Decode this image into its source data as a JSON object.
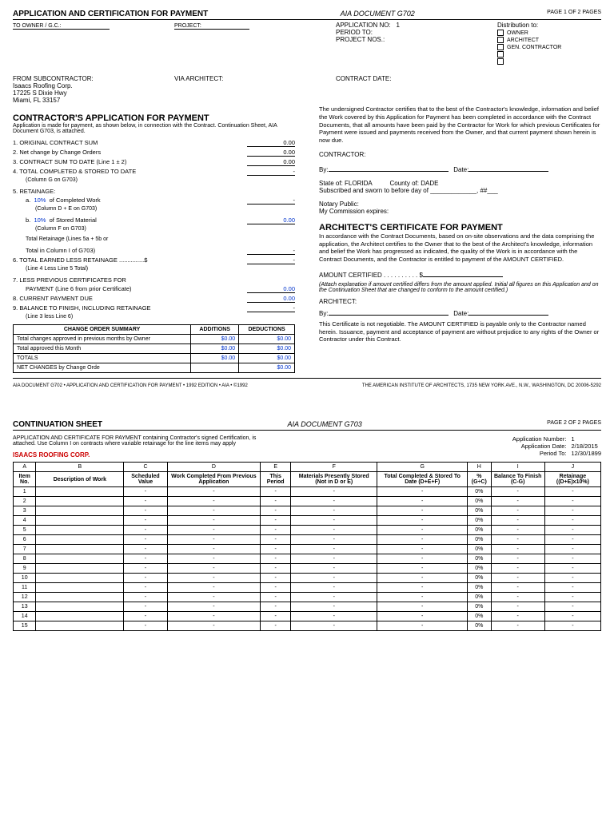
{
  "page1": {
    "title": "APPLICATION AND CERTIFICATION FOR PAYMENT",
    "doc": "AIA DOCUMENT G702",
    "pagenum": "PAGE 1 OF 2 PAGES",
    "toOwner": "TO OWNER / G.C.:",
    "project": "PROJECT:",
    "appNoLabel": "APPLICATION NO:",
    "appNo": "1",
    "periodTo": "PERIOD TO:",
    "projectNos": "PROJECT NOS.:",
    "distribution": "Distribution to:",
    "distItems": [
      "OWNER",
      "ARCHITECT",
      "GEN. CONTRACTOR"
    ],
    "fromSub": "FROM SUBCONTRACTOR:",
    "viaArch": "VIA ARCHITECT:",
    "contractDate": "CONTRACT DATE:",
    "contractor": {
      "name": "Isaacs Roofing Corp.",
      "addr1": "17225 S Dixie Hwy",
      "addr2": "Miami, FL 33157"
    },
    "sectionA": "CONTRACTOR'S APPLICATION FOR PAYMENT",
    "sectionASub": "Application is made for payment, as shown below, in connection with the Contract. Continuation Sheet, AIA Document G703, is attached.",
    "certText": "The undersigned Contractor certifies that to the best of the Contractor's knowledge, information and belief the Work covered by this Application for Payment has been completed in accordance with the Contract Documents, that all amounts have been paid by the Contractor for Work for which previous Certificates for Payment were issued and payments received from the Owner, and that current payment shown herein is now due.",
    "contractorLabel": "CONTRACTOR:",
    "byLabel": "By:",
    "dateLabel": "Date:",
    "stateLabel": "State of:",
    "state": "FLORIDA",
    "countyLabel": "County of:",
    "county": "DADE",
    "sworn": "Subscribed and sworn to before    day of _____________, ##___",
    "notary": "Notary Public:",
    "commission": "My Commission expires:",
    "lines": {
      "l1": "1.  ORIGINAL CONTRACT SUM",
      "l2": "2.  Net change by Change Orders",
      "l3": "3.  CONTRACT SUM TO DATE (Line 1 ± 2)",
      "l4": "4.  TOTAL COMPLETED & STORED TO DATE",
      "l4sub": "(Column G on G703)",
      "l5": "5.  RETAINAGE:",
      "l5a": "a.  10%  of Completed Work",
      "l5asub": "(Column D + E on G703)",
      "l5b": "b.  10%  of Stored Material",
      "l5bsub": "(Column F on G703)",
      "l5tot": "Total Retainage (Lines 5a + 5b or",
      "l5tot2": "Total in Column I of G703)",
      "l6": "6.  TOTAL EARNED LESS RETAINAGE ...............$",
      "l6sub": "(Line 4 Less Line 5 Total)",
      "l7": "7.  LESS PREVIOUS CERTIFICATES FOR",
      "l7b": "PAYMENT (Line 6 from prior Certificate)",
      "l8": "8.  CURRENT PAYMENT DUE",
      "l9": "9.  BALANCE TO FINISH, INCLUDING RETAINAGE",
      "l9sub": "(Line 3 less Line 6)",
      "v1": "0.00",
      "v2": "0.00",
      "v3": "0.00",
      "v4": "-",
      "v5a": "-",
      "v5b": "0.00",
      "v5t": "-",
      "v6": "-",
      "v7": "0.00",
      "v8": "0.00",
      "v9": "-"
    },
    "coHeader": {
      "c1": "CHANGE ORDER SUMMARY",
      "c2": "ADDITIONS",
      "c3": "DEDUCTIONS"
    },
    "coRows": [
      {
        "label": "Total changes approved in previous months by Owner",
        "add": "$0.00",
        "ded": "$0.00"
      },
      {
        "label": "Total approved this Month",
        "add": "$0.00",
        "ded": "$0.00"
      },
      {
        "label": "TOTALS",
        "add": "$0.00",
        "ded": "$0.00"
      },
      {
        "label": "NET CHANGES by Change Orde",
        "add": "",
        "ded": "$0.00"
      }
    ],
    "archSection": "ARCHITECT'S CERTIFICATE FOR PAYMENT",
    "archText": "In accordance with the Contract Documents, based on on-site observations and the data comprising the application, the Architect certifies to the Owner that to the best of the Architect's knowledge, information and belief the Work has progressed as indicated, the quality of the Work is in accordance with the Contract Documents, and the Contractor is entitled to payment of the AMOUNT CERTIFIED.",
    "amountCert": "AMOUNT CERTIFIED . . . . . . . . . . $",
    "attachText": "(Attach explanation if amount certified differs from the amount applied. Initial all figures on this Application and on the Continuation Sheet that are changed to conform to the amount certified.)",
    "archLabel": "ARCHITECT:",
    "certNote": "This Certificate is not negotiable. The AMOUNT CERTIFIED is payable only to the Contractor named herein. Issuance, payment and acceptance of payment are without prejudice to any rights of the Owner or Contractor under this Contract.",
    "footer1": "AIA DOCUMENT G702 • APPLICATION AND CERTIFICATION FOR PAYMENT • 1992 EDITION • AIA • ©1992",
    "footer2": "THE AMERICAN INSTITUTE OF ARCHITECTS, 1735 NEW YORK AVE., N.W., WASHINGTON, DC 20006-5292"
  },
  "page2": {
    "title": "CONTINUATION SHEET",
    "doc": "AIA DOCUMENT G703",
    "pagenum": "PAGE 2 OF 2 PAGES",
    "sub": "APPLICATION AND CERTIFICATE FOR PAYMENT containing Contractor's signed Certification, is attached. Use Column I on contracts where variable retainage for the line items may apply",
    "company": "ISAACS ROOFING CORP.",
    "appNumLabel": "Application Number:",
    "appNum": "1",
    "appDateLabel": "Application Date:",
    "appDate": "2/18/2015",
    "periodLabel": "Period To:",
    "period": "12/30/1899",
    "letters": [
      "A",
      "B",
      "C",
      "D",
      "E",
      "F",
      "G",
      "H",
      "I",
      "J"
    ],
    "headers": [
      "Item No.",
      "Description of Work",
      "Scheduled Value",
      "Work Completed From Previous Application",
      "This Period",
      "Materials Presently Stored (Not in D or E)",
      "Total Completed & Stored To Date (D+E+F)",
      "% (G÷C)",
      "Balance To Finish (C-G)",
      "Retainage ((D+E)x10%)"
    ],
    "rows": 15
  }
}
